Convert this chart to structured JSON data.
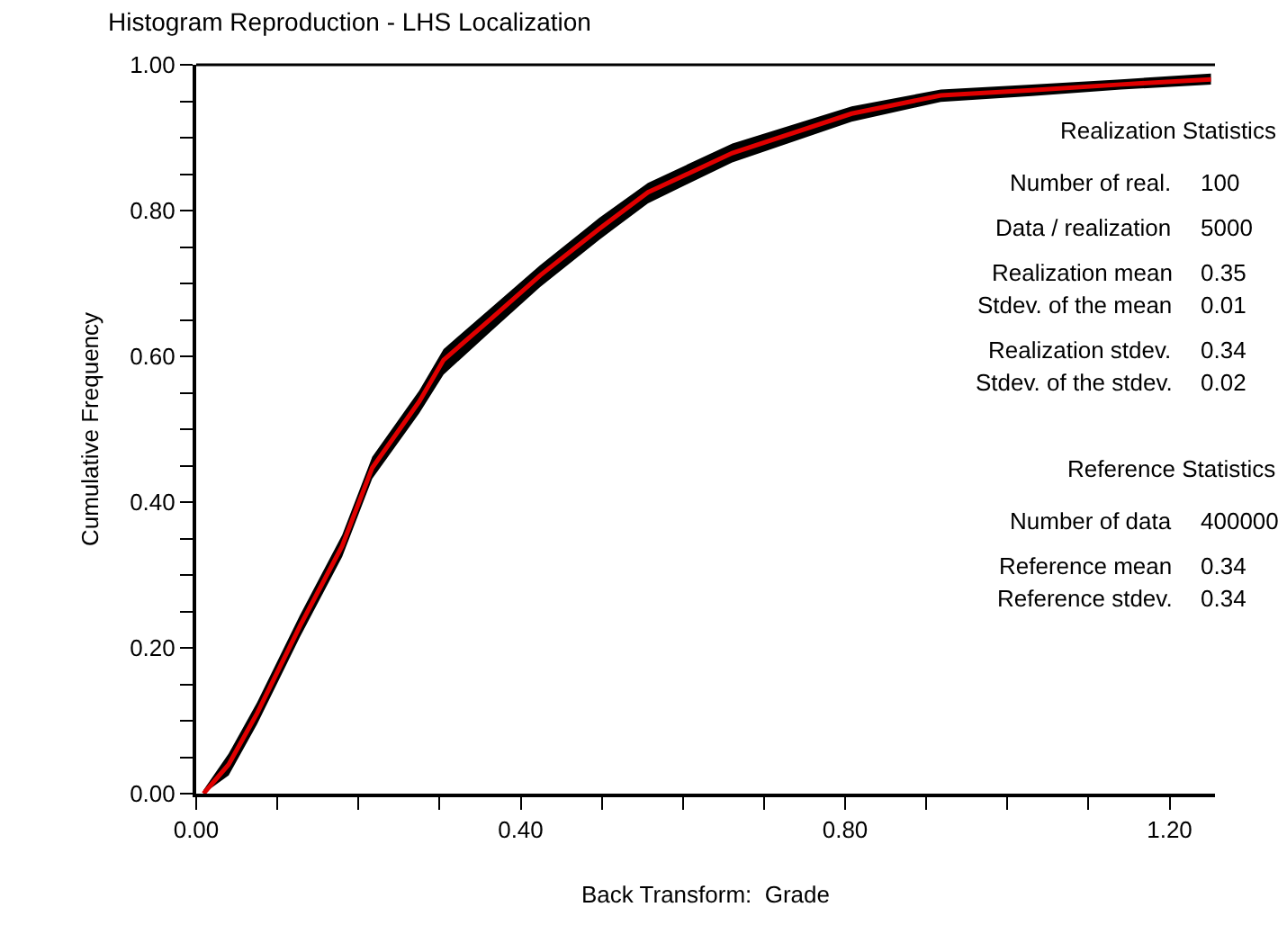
{
  "chart_data": {
    "type": "line",
    "title": "Histogram Reproduction - LHS Localization",
    "xlabel": "Back Transform:  Grade",
    "ylabel": "Cumulative Frequency",
    "x": [
      0.009,
      0.04,
      0.075,
      0.128,
      0.18,
      0.217,
      0.275,
      0.305,
      0.364,
      0.424,
      0.497,
      0.557,
      0.661,
      0.808,
      0.918,
      1.03,
      1.14,
      1.251
    ],
    "series": [
      {
        "color": "#e00000",
        "values": [
          0.0,
          0.04,
          0.11,
          0.23,
          0.34,
          0.447,
          0.538,
          0.595,
          0.652,
          0.711,
          0.775,
          0.825,
          0.879,
          0.933,
          0.958,
          0.965,
          0.973,
          0.98
        ],
        "lower": [
          0.0,
          0.025,
          0.095,
          0.215,
          0.325,
          0.432,
          0.522,
          0.575,
          0.635,
          0.695,
          0.76,
          0.81,
          0.866,
          0.922,
          0.949,
          0.957,
          0.966,
          0.973
        ],
        "upper": [
          0.005,
          0.055,
          0.125,
          0.245,
          0.355,
          0.462,
          0.553,
          0.61,
          0.667,
          0.725,
          0.79,
          0.838,
          0.892,
          0.943,
          0.966,
          0.973,
          0.98,
          0.988
        ]
      }
    ],
    "xlim": [
      0,
      1.256
    ],
    "ylim": [
      0,
      1
    ],
    "xticks": [
      {
        "value": 0,
        "label": "0.00"
      },
      {
        "value": 0.1,
        "label": null
      },
      {
        "value": 0.2,
        "label": null
      },
      {
        "value": 0.3,
        "label": null
      },
      {
        "value": 0.4,
        "label": "0.40"
      },
      {
        "value": 0.5,
        "label": null
      },
      {
        "value": 0.6,
        "label": null
      },
      {
        "value": 0.7,
        "label": null
      },
      {
        "value": 0.8,
        "label": "0.80"
      },
      {
        "value": 0.9,
        "label": null
      },
      {
        "value": 1.0,
        "label": null
      },
      {
        "value": 1.1,
        "label": null
      },
      {
        "value": 1.2,
        "label": "1.20"
      }
    ],
    "yticks": [
      {
        "value": 0,
        "label": "0.00"
      },
      {
        "value": 0.05,
        "label": null
      },
      {
        "value": 0.1,
        "label": null
      },
      {
        "value": 0.15,
        "label": null
      },
      {
        "value": 0.2,
        "label": "0.20"
      },
      {
        "value": 0.25,
        "label": null
      },
      {
        "value": 0.3,
        "label": null
      },
      {
        "value": 0.35,
        "label": null
      },
      {
        "value": 0.4,
        "label": "0.40"
      },
      {
        "value": 0.45,
        "label": null
      },
      {
        "value": 0.5,
        "label": null
      },
      {
        "value": 0.55,
        "label": null
      },
      {
        "value": 0.6,
        "label": "0.60"
      },
      {
        "value": 0.65,
        "label": null
      },
      {
        "value": 0.7,
        "label": null
      },
      {
        "value": 0.75,
        "label": null
      },
      {
        "value": 0.8,
        "label": "0.80"
      },
      {
        "value": 0.85,
        "label": null
      },
      {
        "value": 0.9,
        "label": null
      },
      {
        "value": 0.95,
        "label": null
      },
      {
        "value": 1.0,
        "label": "1.00"
      }
    ],
    "marker": "none",
    "line_style": "solid",
    "annotations": [
      "Realization Statistics",
      "Number of real.",
      "100",
      "Data / realization",
      "5000",
      "Realization mean",
      "0.35",
      "Stdev. of the mean",
      "0.01",
      "Realization stdev.",
      "0.34",
      "Stdev. of the stdev.",
      "0.02",
      "Reference Statistics",
      "Number of data",
      "400000",
      "Reference mean",
      "0.34",
      "Reference stdev.",
      "0.34"
    ]
  }
}
